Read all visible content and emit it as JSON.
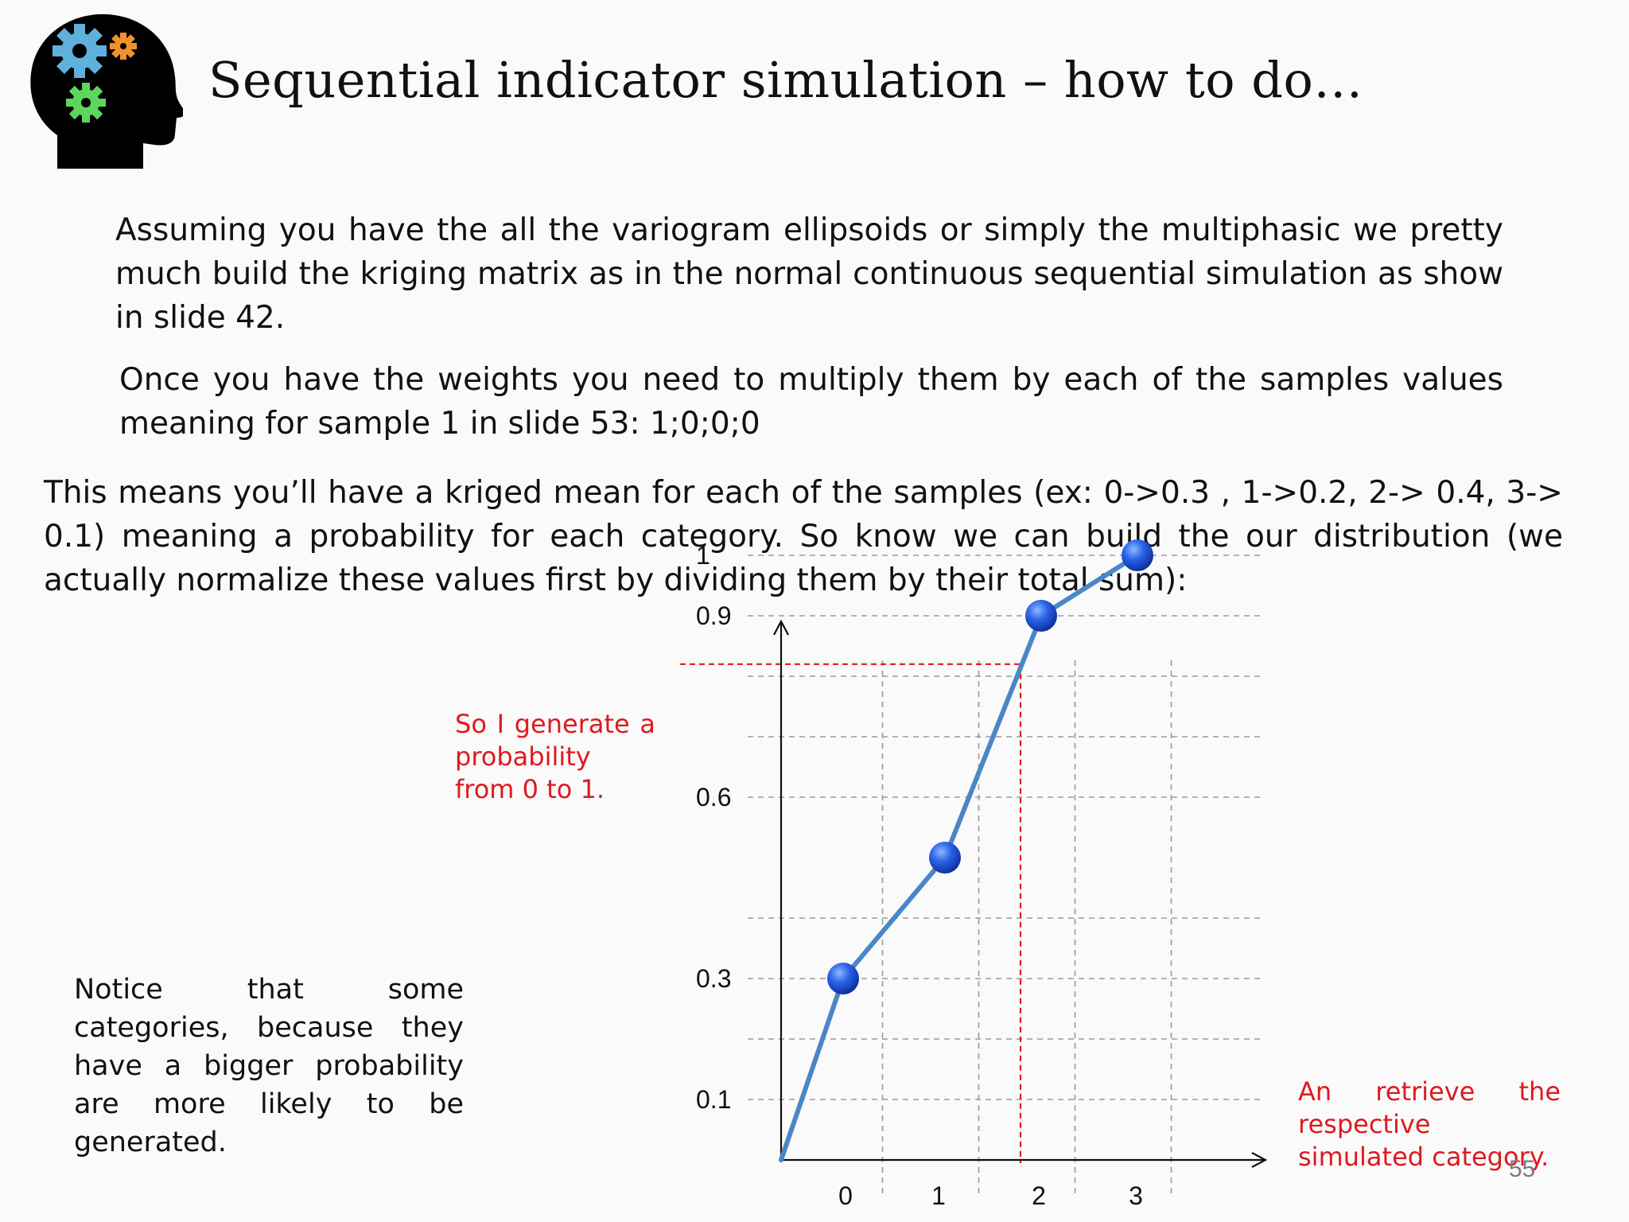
{
  "slide": {
    "title": "Sequential indicator simulation – how to do…",
    "paragraphs": [
      "Assuming you have the all the variogram ellipsoids or simply the multiphasic we pretty much build the kriging matrix as in the normal continuous sequential simulation as show in slide 42.",
      "Once you have the weights you need to multiply them by each of the samples values meaning for sample 1 in slide 53: 1;0;0;0",
      "This means you’ll have a kriged mean for each of the samples (ex: 0->0.3 , 1->0.2, 2-> 0.4, 3-> 0.1) meaning a probability for each category. So know we can build the our distribution (we actually normalize these values first by dividing them by their total sum):"
    ],
    "side_note": "Notice that some categories, because they have a bigger probability are more likely to be generated.",
    "red_note_probability": "So I generate a probability from 0 to 1.",
    "red_note_retrieve": "An retrieve the respective simulated category.",
    "page_number": "55",
    "colors": {
      "accent_red": "#e0191e",
      "line": "#4a86c8",
      "point": "#1f5bd8"
    },
    "logo_icon": "head-with-gears-icon"
  },
  "chart_data": {
    "type": "line",
    "x": [
      0,
      1,
      2,
      3
    ],
    "x_tick_labels": [
      "0",
      "1",
      "2",
      "3"
    ],
    "y": [
      0.3,
      0.5,
      0.9,
      1.0
    ],
    "origin": [
      -0.6,
      0.0
    ],
    "y_tick_labels": [
      "0.1",
      "0.3",
      "0.6",
      "0.9",
      "1"
    ],
    "y_tick_values": [
      0.1,
      0.3,
      0.6,
      0.9,
      1.0
    ],
    "drawn_probability": 0.82,
    "retrieved_category": 2,
    "xlim": [
      -0.6,
      4.0
    ],
    "ylim": [
      0,
      1.1
    ],
    "grid": true
  }
}
